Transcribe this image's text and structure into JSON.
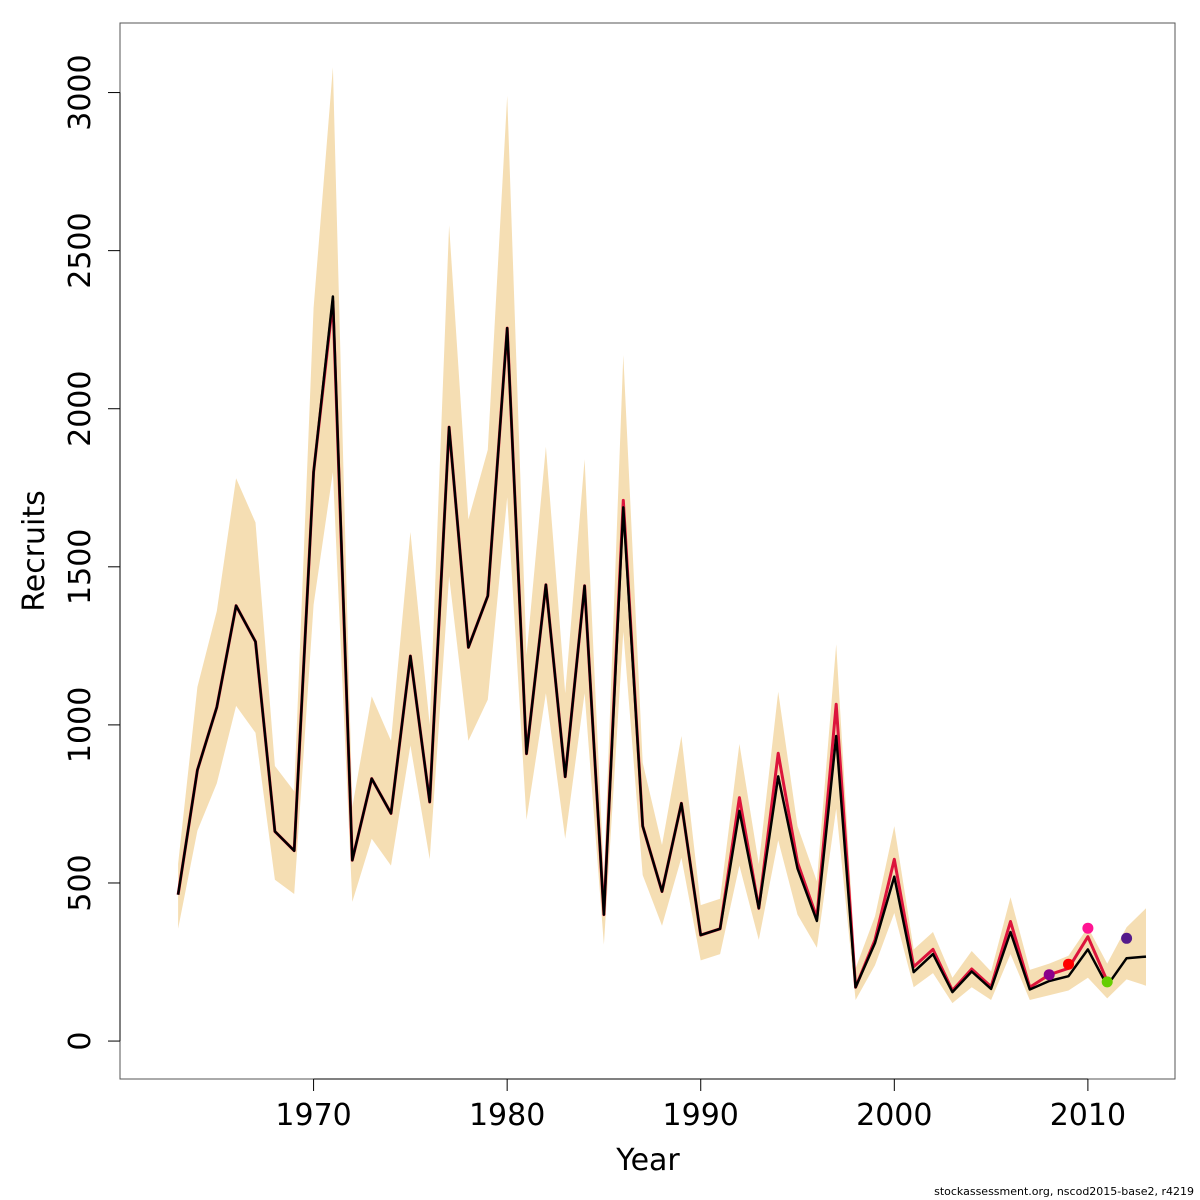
{
  "chart_data": {
    "type": "line",
    "xlabel": "Year",
    "ylabel": "Recruits",
    "xlim": [
      1960,
      2014.5
    ],
    "ylim": [
      -120,
      3220
    ],
    "x_ticks": [
      1970,
      1980,
      1990,
      2000,
      2010
    ],
    "y_ticks": [
      0,
      500,
      1000,
      1500,
      2000,
      2500,
      3000
    ],
    "grid": false,
    "colors": {
      "band": "#f5deb3",
      "main_line": "#000000",
      "retro_line": "#dc143c",
      "retro_point_2008": "#8b008b",
      "retro_point_2009": "#ff0000",
      "retro_point_2010": "#ff1493",
      "retro_point_2011": "#66cd00",
      "retro_point_2012": "#551a8b"
    },
    "years": [
      1963,
      1964,
      1965,
      1966,
      1967,
      1968,
      1969,
      1970,
      1971,
      1972,
      1973,
      1974,
      1975,
      1976,
      1977,
      1978,
      1979,
      1980,
      1981,
      1982,
      1983,
      1984,
      1985,
      1986,
      1987,
      1988,
      1989,
      1990,
      1991,
      1992,
      1993,
      1994,
      1995,
      1996,
      1997,
      1998,
      1999,
      2000,
      2001,
      2002,
      2003,
      2004,
      2005,
      2006,
      2007,
      2008,
      2009,
      2010,
      2011,
      2012,
      2013
    ],
    "series": [
      {
        "values": [
          463,
          857,
          1056,
          1377,
          1263,
          663,
          602,
          1800,
          2355,
          572,
          830,
          720,
          1218,
          756,
          1942,
          1245,
          1408,
          2255,
          909,
          1443,
          836,
          1440,
          400,
          1688,
          680,
          473,
          752,
          335,
          355,
          728,
          420,
          837,
          546,
          380,
          965,
          170,
          310,
          520,
          218,
          275,
          155,
          220,
          165,
          345,
          163,
          190,
          205,
          290,
          175,
          262,
          267
        ]
      },
      {
        "values": [
          463,
          857,
          1056,
          1377,
          1263,
          663,
          602,
          1800,
          2340,
          572,
          830,
          720,
          1218,
          756,
          1942,
          1245,
          1408,
          2255,
          909,
          1443,
          836,
          1440,
          400,
          1710,
          680,
          473,
          752,
          335,
          355,
          770,
          420,
          910,
          565,
          390,
          1065,
          170,
          320,
          575,
          235,
          290,
          160,
          228,
          172,
          378,
          170,
          210,
          230,
          330,
          190
        ]
      }
    ],
    "band_upper": [
      560,
      1120,
      1360,
      1780,
      1640,
      870,
      790,
      2320,
      3080,
      740,
      1090,
      950,
      1610,
      1000,
      2580,
      1650,
      1870,
      2990,
      1220,
      1880,
      1100,
      1840,
      520,
      2170,
      880,
      620,
      965,
      430,
      450,
      940,
      560,
      1105,
      680,
      505,
      1255,
      230,
      395,
      680,
      290,
      345,
      200,
      285,
      220,
      455,
      225,
      245,
      270,
      360,
      245,
      360,
      420
    ],
    "band_lower": [
      355,
      665,
      815,
      1060,
      975,
      510,
      465,
      1380,
      1800,
      440,
      640,
      555,
      935,
      575,
      1470,
      950,
      1080,
      1720,
      700,
      1100,
      640,
      1100,
      305,
      1295,
      525,
      365,
      580,
      255,
      275,
      555,
      320,
      635,
      400,
      295,
      735,
      130,
      240,
      405,
      170,
      215,
      120,
      170,
      130,
      275,
      130,
      145,
      160,
      200,
      135,
      195,
      175
    ],
    "retro_points": [
      {
        "x": 2008,
        "y": 210
      },
      {
        "x": 2009,
        "y": 243
      },
      {
        "x": 2010,
        "y": 357
      },
      {
        "x": 2011,
        "y": 187
      },
      {
        "x": 2012,
        "y": 325
      }
    ]
  },
  "footer": {
    "text": "stockassessment.org, nscod2015-base2, r4219"
  }
}
